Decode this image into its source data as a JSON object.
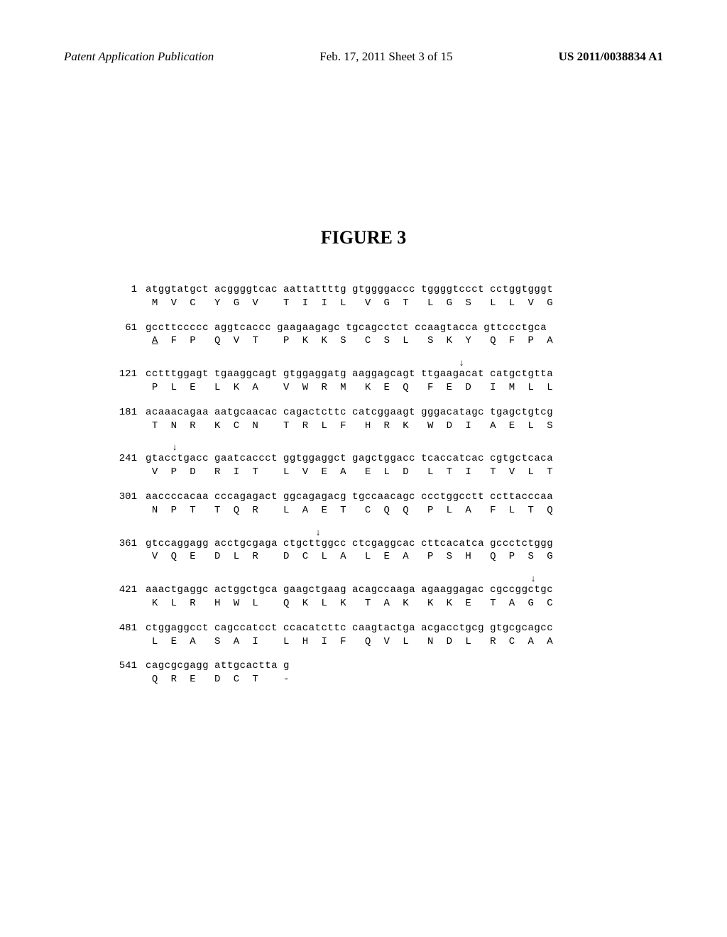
{
  "header": {
    "left": "Patent Application Publication",
    "center": "Feb. 17, 2011  Sheet 3 of 15",
    "right": "US 2011/0038834 A1"
  },
  "figure_title": "FIGURE 3",
  "sequence": {
    "font_family": "Courier New",
    "font_size_pt": 10,
    "text_color": "#000000",
    "background_color": "#ffffff",
    "rows": [
      {
        "pos": 1,
        "arrows": [],
        "nuc": [
          "atggtatgct",
          "acggggtcac",
          "aattattttg",
          "gtggggaccc",
          "tggggtccct",
          "cctggtgggt"
        ],
        "aa": [
          " M  V  C  ",
          "Y  G  V   ",
          "T  I  I  L",
          "  V  G  T ",
          " L  G  S  ",
          "L  L  V  G"
        ],
        "underline_first": false
      },
      {
        "pos": 61,
        "arrows": [],
        "nuc": [
          "gccttccccc",
          "aggtcaccc",
          "gaagaagagc",
          "tgcagcctct",
          "ccaagtacca",
          "gttccctgca"
        ],
        "aa": [
          " A  F  P  ",
          "Q  V  T   ",
          "P  K  K  S",
          "  C  S  L ",
          " S  K  Y  ",
          "Q  F  P  A"
        ],
        "underline_first": true
      },
      {
        "pos": 121,
        "arrows": [
          {
            "group": 4,
            "char": 4
          }
        ],
        "nuc": [
          "cctttggagt",
          "tgaaggcagt",
          "gtggaggatg",
          "aaggagcagt",
          "ttgaagacat",
          "catgctgtta"
        ],
        "aa": [
          " P  L  E  ",
          "L  K  A   ",
          "V  W  R  M",
          "  K  E  Q ",
          " F  E  D  ",
          "I  M  L  L"
        ]
      },
      {
        "pos": 181,
        "arrows": [],
        "nuc": [
          "acaaacagaa",
          "aatgcaacac",
          "cagactcttc",
          "catcggaagt",
          "gggacatagc",
          "tgagctgtcg"
        ],
        "aa": [
          " T  N  R  ",
          "K  C  N   ",
          "T  R  L  F",
          "  H  R  K ",
          " W  D  I  ",
          "A  E  L  S"
        ]
      },
      {
        "pos": 241,
        "arrows": [
          {
            "group": 0,
            "char": 4
          }
        ],
        "nuc": [
          "gtacctgacc",
          "gaatcaccct",
          "ggtggaggct",
          "gagctggacc",
          "tcaccatcac",
          "cgtgctcaca"
        ],
        "aa": [
          " V  P  D  ",
          "R  I  T   ",
          "L  V  E  A",
          "  E  L  D ",
          " L  T  I  ",
          "T  V  L  T"
        ]
      },
      {
        "pos": 301,
        "arrows": [],
        "nuc": [
          "aaccccacaa",
          "cccagagact",
          "ggcagagacg",
          "tgccaacagc",
          "ccctggcctt",
          "ccttacccaa"
        ],
        "aa": [
          " N  P  T  ",
          "T  Q  R   ",
          "L  A  E  T",
          "  C  Q  Q ",
          " P  L  A  ",
          "F  L  T  Q"
        ]
      },
      {
        "pos": 361,
        "arrows": [
          {
            "group": 2,
            "char": 4
          }
        ],
        "nuc": [
          "gtccaggagg",
          "acctgcgaga",
          "ctgcttggcc",
          "ctcgaggcac",
          "cttcacatca",
          "gccctctggg"
        ],
        "aa": [
          " V  Q  E  ",
          "D  L  R   ",
          "D  C  L  A",
          "  L  E  A ",
          " P  S  H  ",
          "Q  P  S  G"
        ]
      },
      {
        "pos": 421,
        "arrows": [
          {
            "group": 5,
            "char": 4
          }
        ],
        "nuc": [
          "aaactgaggc",
          "actggctgca",
          "gaagctgaag",
          "acagccaaga",
          "agaaggagac",
          "cgccggctgc"
        ],
        "aa": [
          " K  L  R  ",
          "H  W  L   ",
          "Q  K  L  K",
          "  T  A  K ",
          " K  K  E  ",
          "T  A  G  C"
        ]
      },
      {
        "pos": 481,
        "arrows": [],
        "nuc": [
          "ctggaggcct",
          "cagccatcct",
          "ccacatcttc",
          "caagtactga",
          "acgacctgcg",
          "gtgcgcagcc"
        ],
        "aa": [
          " L  E  A  ",
          "S  A  I   ",
          "L  H  I  F",
          "  Q  V  L ",
          " N  D  L  ",
          "R  C  A  A"
        ]
      },
      {
        "pos": 541,
        "arrows": [],
        "nuc": [
          "cagcgcgagg",
          "attgcactta",
          "g"
        ],
        "aa": [
          " Q  R  E  ",
          "D  C  T   ",
          "-"
        ]
      }
    ]
  }
}
